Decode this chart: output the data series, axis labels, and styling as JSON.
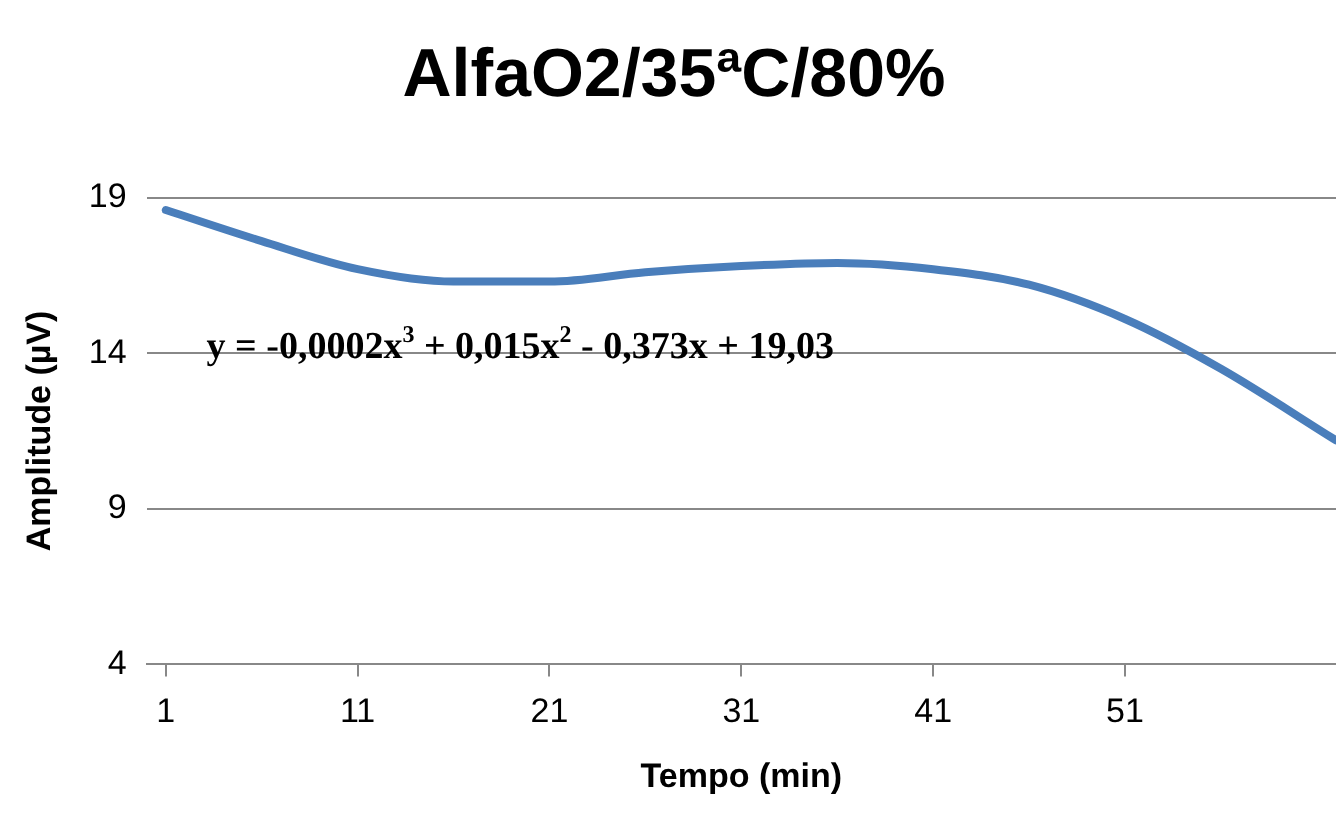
{
  "chart_data": {
    "type": "line",
    "title": "AlfaO2/35ªC/80%",
    "xlabel": "Tempo (min)",
    "ylabel": "Amplitude (µV)",
    "x": [
      1,
      6,
      11,
      16,
      21,
      26,
      31,
      36,
      41,
      46,
      51,
      56,
      62
    ],
    "series": [
      {
        "color": "#4a7ebb",
        "values": [
          18.6,
          17.6,
          16.7,
          16.3,
          16.3,
          16.6,
          16.8,
          16.9,
          16.7,
          16.2,
          15.1,
          13.5,
          11.2
        ]
      }
    ],
    "xlim": [
      0,
      62
    ],
    "xticks": [
      1,
      11,
      21,
      31,
      41,
      51
    ],
    "ylim": [
      4,
      19
    ],
    "yticks": [
      4,
      9,
      14,
      19
    ],
    "grid": "y",
    "legend": false,
    "marker": "none",
    "line_style": "solid",
    "annotations": [
      "y = -0,0002x$^{3}$ + 0,015x$^{2}$ - 0,373x + 19,03"
    ]
  }
}
